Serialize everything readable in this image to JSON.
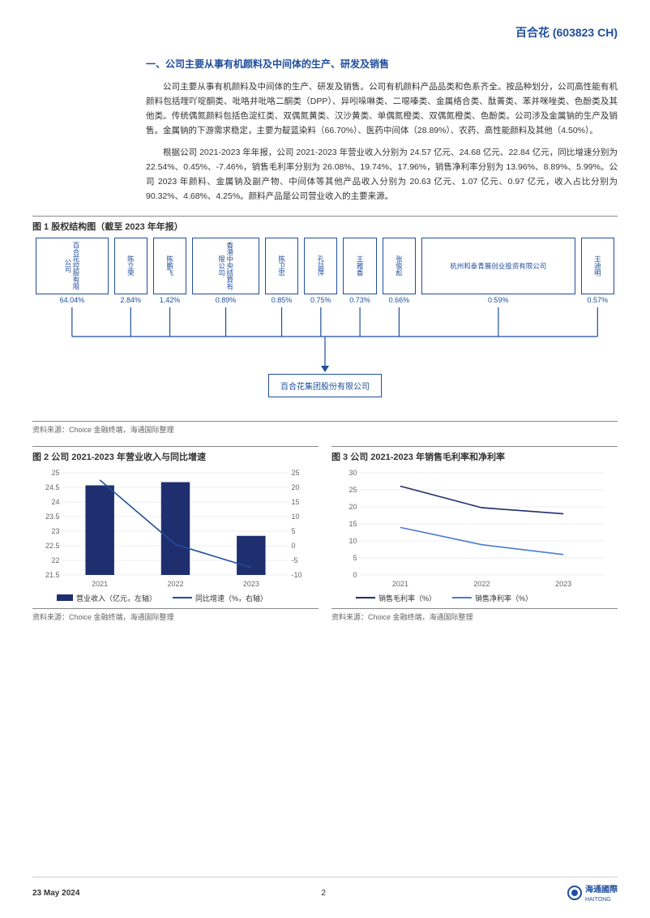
{
  "header": {
    "company": "百合花",
    "ticker": "(603823 CH)"
  },
  "section1": {
    "heading": "一、公司主要从事有机颜料及中间体的生产、研发及销售",
    "para1": "公司主要从事有机颜料及中间体的生产、研发及销售。公司有机颜料产品品类和色系齐全。按品种划分，公司高性能有机颜料包括喹吖啶酮类、吡咯并吡咯二酮类（DPP）、异吲哚啉类、二噁嗪类、金属络合类、酞菁类、苯并咪唑类、色酚类及其他类。传统偶氮颜料包括色淀红类、双偶氮黄类、汉沙黄类、单偶氮橙类、双偶氮橙类、色酚类。公司涉及金属钠的生产及销售。金属钠的下游需求稳定，主要为靛蓝染料（66.70%）、医药中间体（28.89%）、农药、高性能颜料及其他（4.50%）。",
    "para2": "根据公司 2021-2023 年年报，公司 2021-2023 年营业收入分别为 24.57 亿元、24.68 亿元、22.84 亿元，同比增速分别为 22.54%、0.45%、-7.46%，销售毛利率分别为 26.08%、19.74%、17.96%，销售净利率分别为 13.96%、8.89%、5.99%。公司 2023 年颜料、金属钠及副产物、中间体等其他产品收入分别为 20.63 亿元、1.07 亿元、0.97 亿元，收入占比分别为 90.32%、4.68%、4.25%。颜料产品是公司营业收入的主要来源。"
  },
  "fig1": {
    "title": "图 1 股权结构图（截至 2023 年年报）",
    "holders": [
      {
        "name": "百合花控股有限公司",
        "pct": "64.04%",
        "w": 52
      },
      {
        "name": "陈立荣",
        "pct": "2.84%",
        "w": 24
      },
      {
        "name": "陈鹏飞",
        "pct": "1.42%",
        "w": 24
      },
      {
        "name": "香港中央结算有限公司",
        "pct": "0.89%",
        "w": 48
      },
      {
        "name": "陈卫忠",
        "pct": "0.85%",
        "w": 24
      },
      {
        "name": "孔益萍",
        "pct": "0.75%",
        "w": 24
      },
      {
        "name": "王雅香",
        "pct": "0.73%",
        "w": 24
      },
      {
        "name": "张俊彪",
        "pct": "0.66%",
        "w": 24
      },
      {
        "name": "杭州和泰青展创业投资有限公司",
        "pct": "0.59%",
        "w": 110
      },
      {
        "name": "王迪明",
        "pct": "0.57%",
        "w": 24
      }
    ],
    "target": "百合花集团股份有限公司",
    "line_color": "#1f4e9c",
    "source": "资料来源：Choice 金融终端，海通国际整理"
  },
  "fig2": {
    "title": "图 2 公司 2021-2023 年营业收入与同比增速",
    "type": "bar+line",
    "categories": [
      "2021",
      "2022",
      "2023"
    ],
    "bar_values": [
      24.57,
      24.68,
      22.84
    ],
    "bar_color": "#1f2e6e",
    "bar_width": 0.38,
    "line_values": [
      22.54,
      0.45,
      -7.46
    ],
    "line_color": "#1f4e9c",
    "y1_ticks": [
      21.5,
      22,
      22.5,
      23,
      23.5,
      24,
      24.5,
      25
    ],
    "y1_lim": [
      21.5,
      25
    ],
    "y2_ticks": [
      -10,
      -5,
      0,
      5,
      10,
      15,
      20,
      25
    ],
    "y2_lim": [
      -10,
      25
    ],
    "grid_color": "#d9d9d9",
    "label_fontsize": 9,
    "legend": [
      {
        "label": "营业收入（亿元，左轴）",
        "type": "bar",
        "color": "#1f2e6e"
      },
      {
        "label": "同比增速（%，右轴）",
        "type": "line",
        "color": "#1f4e9c"
      }
    ],
    "source": "资料来源：Choice 金融终端，海通国际整理"
  },
  "fig3": {
    "title": "图 3 公司 2021-2023 年销售毛利率和净利率",
    "type": "line",
    "categories": [
      "2021",
      "2022",
      "2023"
    ],
    "series": [
      {
        "name": "销售毛利率（%）",
        "values": [
          26.08,
          19.74,
          17.96
        ],
        "color": "#1f2e6e"
      },
      {
        "name": "销售净利率（%）",
        "values": [
          13.96,
          8.89,
          5.99
        ],
        "color": "#4a7bd0"
      }
    ],
    "y_ticks": [
      0,
      5,
      10,
      15,
      20,
      25,
      30
    ],
    "y_lim": [
      0,
      30
    ],
    "grid_color": "#d9d9d9",
    "label_fontsize": 9,
    "source": "资料来源：Choice 金融终端，海通国际整理"
  },
  "footer": {
    "date": "23 May 2024",
    "page": "2",
    "logo_text": "海通國際",
    "logo_sub": "HAITONG"
  }
}
